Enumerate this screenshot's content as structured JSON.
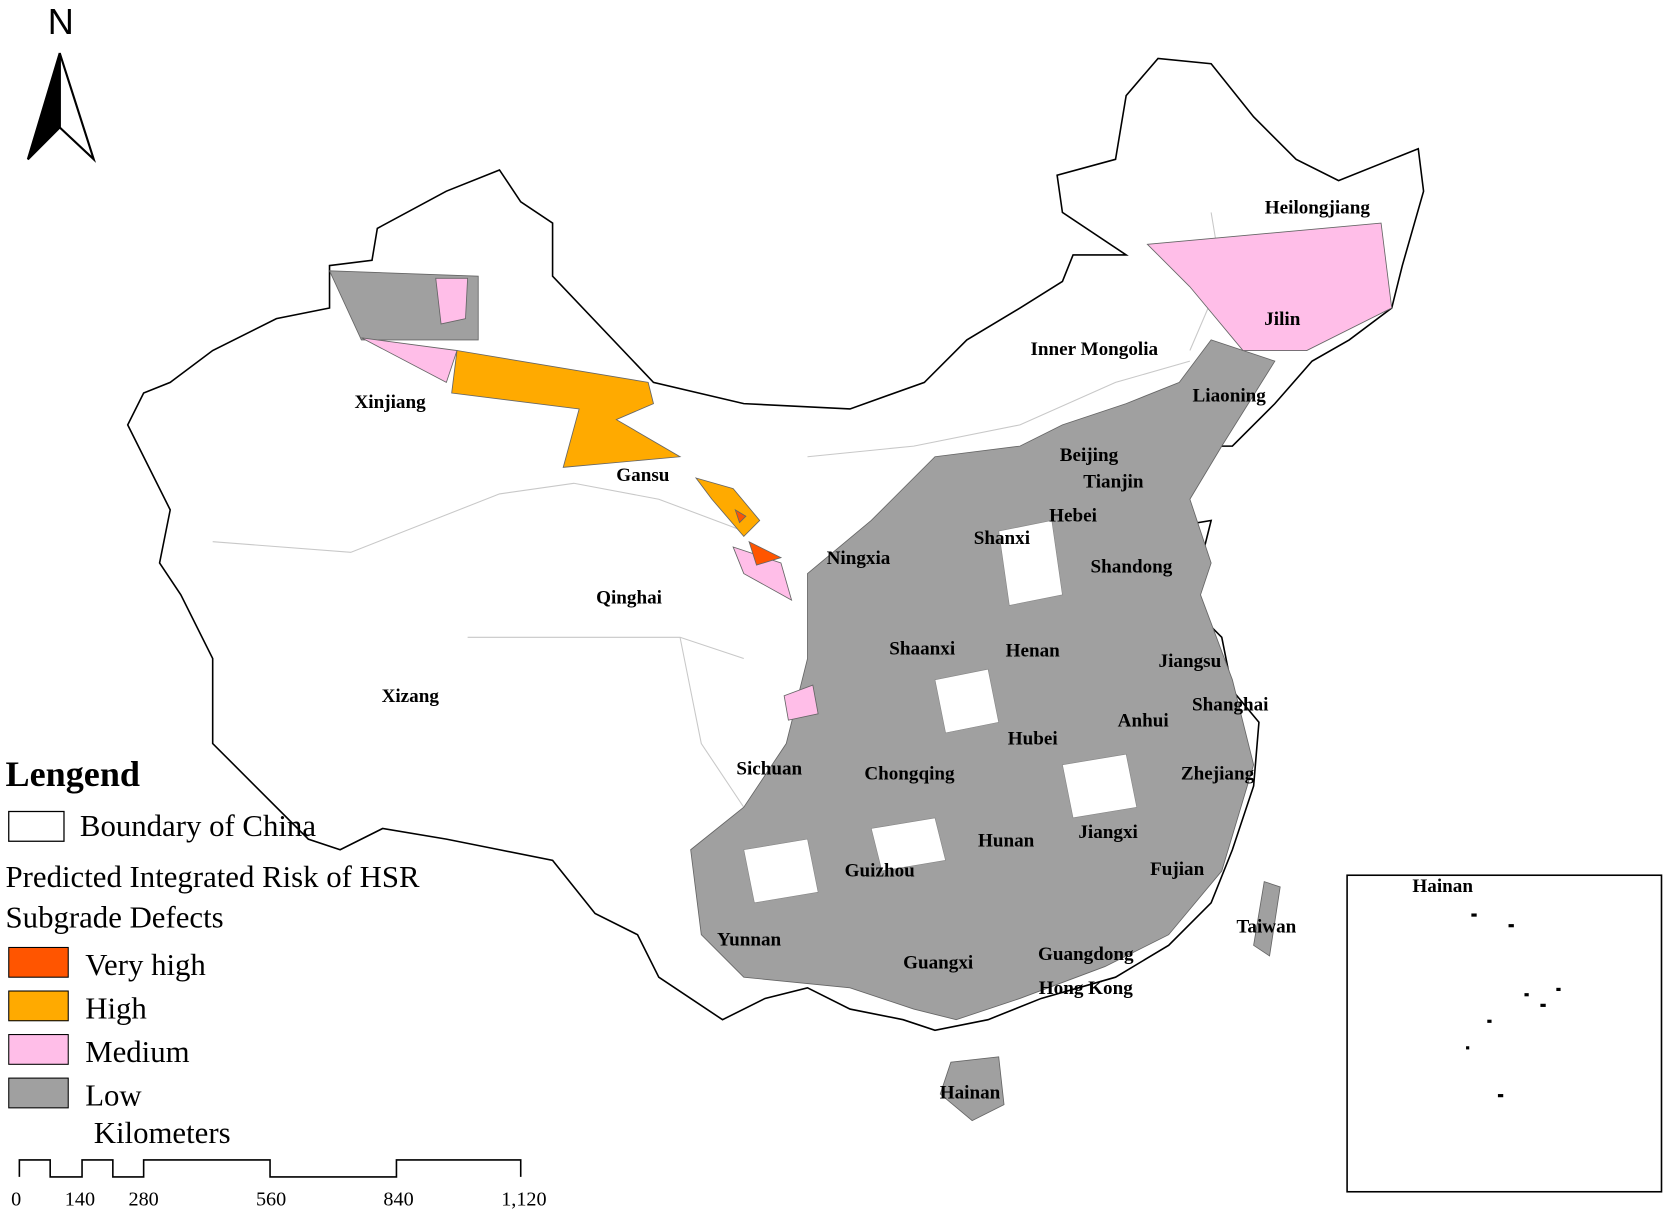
{
  "north": "N",
  "provinces": [
    "Heilongjiang",
    "Jilin",
    "Inner Mongolia",
    "Liaoning",
    "Xinjiang",
    "Beijing",
    "Tianjin",
    "Gansu",
    "Hebei",
    "Shanxi",
    "Ningxia",
    "Shandong",
    "Qinghai",
    "Shaanxi",
    "Henan",
    "Jiangsu",
    "Xizang",
    "Shanghai",
    "Anhui",
    "Hubei",
    "Sichuan",
    "Chongqing",
    "Zhejiang",
    "Hunan",
    "Jiangxi",
    "Guizhou",
    "Fujian",
    "Taiwan",
    "Yunnan",
    "Guangxi",
    "Guangdong",
    "Hong Kong",
    "Hainan"
  ],
  "inset": {
    "label": "Hainan"
  },
  "legend": {
    "title": "Lengend",
    "boundary": "Boundary of China",
    "heading": [
      "Predicted Integrated Risk of HSR",
      "Subgrade Defects"
    ],
    "classes": [
      {
        "name": "Very high",
        "color": "#ff5500"
      },
      {
        "name": "High",
        "color": "#ffaa00"
      },
      {
        "name": "Medium",
        "color": "#ffbee8"
      },
      {
        "name": "Low",
        "color": "#a0a0a0"
      }
    ]
  },
  "scale_bar": {
    "unit": "Kilometers",
    "labels": [
      "0",
      "140",
      "280",
      "560",
      "840",
      "1,120"
    ]
  }
}
